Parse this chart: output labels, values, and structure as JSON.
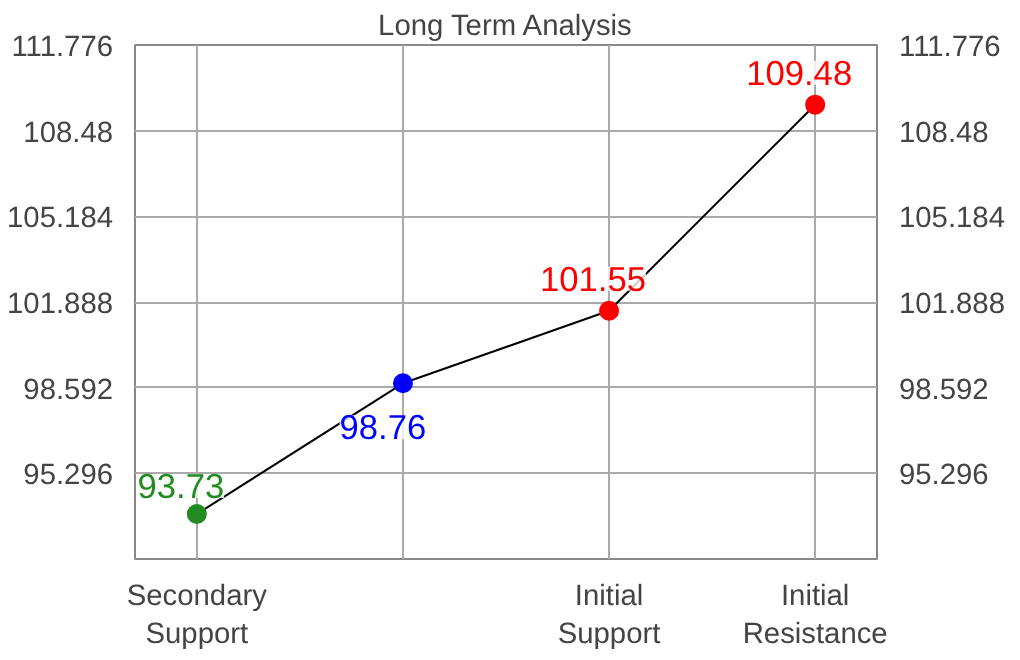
{
  "chart_data": {
    "type": "line",
    "title": "Long Term Analysis",
    "categories": [
      "Secondary\nSupport",
      null,
      "Initial\nSupport",
      "Initial\nResistance"
    ],
    "series": [
      {
        "color": "#000000",
        "colors": [
          "#228b22",
          "#0000ff",
          "#ff0000",
          "#ff0000"
        ],
        "values": [
          93.73,
          98.76,
          101.55,
          109.48
        ]
      }
    ],
    "data_labels": true,
    "marker": "circle",
    "line_style": "solid",
    "grid": true,
    "ylim": [
      92,
      111.776
    ],
    "yticks": [
      95.296,
      98.592,
      101.888,
      105.184,
      108.48,
      111.776
    ],
    "y2lim": [
      92,
      111.776
    ],
    "y2ticks": [
      95.296,
      98.592,
      101.888,
      105.184,
      108.48,
      111.776
    ]
  }
}
